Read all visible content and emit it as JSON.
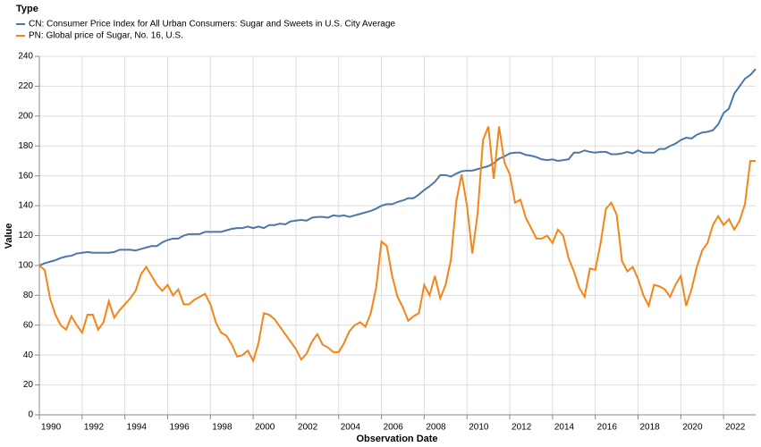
{
  "chart_data": {
    "type": "line",
    "legend_title": "Type",
    "xlabel": "Observation Date",
    "ylabel": "Value",
    "x": [
      1990,
      1990.25,
      1990.5,
      1990.75,
      1991,
      1991.25,
      1991.5,
      1991.75,
      1992,
      1992.25,
      1992.5,
      1992.75,
      1993,
      1993.25,
      1993.5,
      1993.75,
      1994,
      1994.25,
      1994.5,
      1994.75,
      1995,
      1995.25,
      1995.5,
      1995.75,
      1996,
      1996.25,
      1996.5,
      1996.75,
      1997,
      1997.25,
      1997.5,
      1997.75,
      1998,
      1998.25,
      1998.5,
      1998.75,
      1999,
      1999.25,
      1999.5,
      1999.75,
      2000,
      2000.25,
      2000.5,
      2000.75,
      2001,
      2001.25,
      2001.5,
      2001.75,
      2002,
      2002.25,
      2002.5,
      2002.75,
      2003,
      2003.25,
      2003.5,
      2003.75,
      2004,
      2004.25,
      2004.5,
      2004.75,
      2005,
      2005.25,
      2005.5,
      2005.75,
      2006,
      2006.25,
      2006.5,
      2006.75,
      2007,
      2007.25,
      2007.5,
      2007.75,
      2008,
      2008.25,
      2008.5,
      2008.75,
      2009,
      2009.25,
      2009.5,
      2009.75,
      2010,
      2010.25,
      2010.5,
      2010.75,
      2011,
      2011.25,
      2011.5,
      2011.75,
      2012,
      2012.25,
      2012.5,
      2012.75,
      2013,
      2013.25,
      2013.5,
      2013.75,
      2014,
      2014.25,
      2014.5,
      2014.75,
      2015,
      2015.25,
      2015.5,
      2015.75,
      2016,
      2016.25,
      2016.5,
      2016.75,
      2017,
      2017.25,
      2017.5,
      2017.75,
      2018,
      2018.25,
      2018.5,
      2018.75,
      2019,
      2019.25,
      2019.5,
      2019.75,
      2020,
      2020.25,
      2020.5,
      2020.75,
      2021,
      2021.25,
      2021.5,
      2021.75,
      2022,
      2022.25,
      2022.5,
      2022.75,
      2023,
      2023.25,
      2023.5
    ],
    "series": [
      {
        "name": "CN: Consumer Price Index for All Urban Consumers: Sugar and Sweets in U.S. City Average",
        "color": "#4c78a8",
        "values": [
          100,
          101.5,
          102.5,
          103.5,
          105,
          106,
          106.5,
          108,
          108.5,
          109,
          108.5,
          108.5,
          108.5,
          108.5,
          109,
          110.5,
          110.5,
          110.5,
          110,
          111,
          112,
          113,
          113,
          115.5,
          117,
          118,
          118,
          120,
          121,
          121,
          121,
          122.5,
          122.5,
          122.5,
          122.5,
          123.5,
          124.5,
          125,
          125,
          126,
          125,
          126,
          125,
          127,
          127,
          128,
          127.5,
          129.5,
          130,
          130.5,
          130,
          132,
          132.5,
          132.5,
          132,
          133.5,
          133,
          133.5,
          132.5,
          133.5,
          134.5,
          135.5,
          136.5,
          138,
          140,
          141,
          141,
          142.5,
          143.5,
          145,
          145,
          147.5,
          150.5,
          153,
          156,
          160.5,
          160.5,
          159.5,
          161.5,
          163,
          163.5,
          163.5,
          164.5,
          165.5,
          166.5,
          168.5,
          171.5,
          173,
          175,
          175.5,
          175.5,
          174,
          173.5,
          172.5,
          171,
          170.5,
          171,
          170,
          170.5,
          171,
          175.5,
          175.5,
          177,
          176,
          175.5,
          176,
          176,
          174.5,
          174.5,
          175,
          176,
          175,
          177,
          175.5,
          175.5,
          175.5,
          178,
          178,
          180,
          181.5,
          184,
          185.5,
          185,
          187.5,
          189,
          189.5,
          190.5,
          194.5,
          202,
          205,
          215,
          220,
          225,
          227.5,
          231.5
        ]
      },
      {
        "name": "PN: Global price of Sugar, No. 16, U.S.",
        "color": "#f58518",
        "values": [
          100,
          97,
          78,
          67,
          60,
          57,
          66,
          60,
          55,
          67,
          67,
          57,
          62,
          76,
          65,
          70,
          74,
          78,
          83,
          94,
          99,
          93,
          87,
          83,
          87,
          80,
          84,
          74,
          74,
          77,
          79,
          81,
          74,
          62,
          55,
          53,
          47,
          39,
          40,
          43,
          36,
          48,
          68,
          67,
          64,
          59,
          54,
          49,
          44,
          37,
          41,
          49,
          54,
          47,
          45,
          42,
          42,
          48,
          56,
          60,
          62,
          59,
          68,
          85,
          116,
          113,
          93,
          79,
          72,
          63,
          66,
          68,
          87,
          80,
          93,
          78,
          87,
          104,
          143,
          161,
          140,
          108,
          135,
          184,
          193,
          158,
          193,
          169,
          161,
          142,
          144,
          132,
          125,
          118,
          118,
          120,
          115,
          124,
          120,
          105,
          96,
          85,
          79,
          98,
          97,
          115,
          138,
          142,
          134,
          103,
          96,
          99,
          91,
          80,
          73,
          87,
          86,
          84,
          79,
          87,
          93,
          73,
          84,
          99,
          110,
          115,
          127,
          133,
          127,
          131,
          124,
          130,
          141,
          170,
          170
        ]
      }
    ],
    "xlim": [
      1990,
      2023.5
    ],
    "xticks": [
      1990,
      1992,
      1994,
      1996,
      1998,
      2000,
      2002,
      2004,
      2006,
      2008,
      2010,
      2012,
      2014,
      2016,
      2018,
      2020,
      2022
    ],
    "ylim": [
      0,
      240
    ],
    "yticks": [
      0,
      20,
      40,
      60,
      80,
      100,
      120,
      140,
      160,
      180,
      200,
      220,
      240
    ],
    "grid": true
  }
}
